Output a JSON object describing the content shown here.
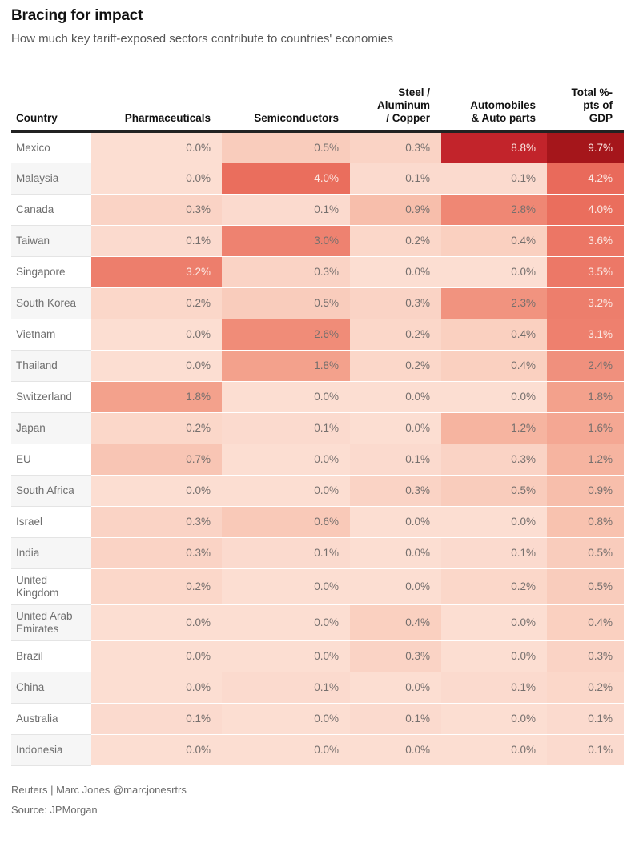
{
  "header": {
    "title": "Bracing for impact",
    "subtitle": "How much key tariff-exposed sectors contribute to countries' economies"
  },
  "table": {
    "columns_display": [
      "Country",
      "Pharmaceuticals",
      "Semiconductors",
      "Steel /\nAluminum\n/ Copper",
      "Automobiles\n& Auto parts",
      "Total %-\npts of\nGDP"
    ]
  },
  "chart_data": {
    "type": "heatmap",
    "title": "Bracing for impact",
    "subtitle": "How much key tariff-exposed sectors contribute to countries' economies",
    "unit": "%",
    "value_format": "one_decimal_percent",
    "columns": [
      "Pharmaceuticals",
      "Semiconductors",
      "Steel / Aluminum / Copper",
      "Automobiles & Auto parts",
      "Total %-pts of GDP"
    ],
    "rows": [
      "Mexico",
      "Malaysia",
      "Canada",
      "Taiwan",
      "Singapore",
      "South Korea",
      "Vietnam",
      "Thailand",
      "Switzerland",
      "Japan",
      "EU",
      "South Africa",
      "Israel",
      "India",
      "United Kingdom",
      "United Arab Emirates",
      "Brazil",
      "China",
      "Australia",
      "Indonesia"
    ],
    "values": [
      [
        0.0,
        0.5,
        0.3,
        8.8,
        9.7
      ],
      [
        0.0,
        4.0,
        0.1,
        0.1,
        4.2
      ],
      [
        0.3,
        0.1,
        0.9,
        2.8,
        4.0
      ],
      [
        0.1,
        3.0,
        0.2,
        0.4,
        3.6
      ],
      [
        3.2,
        0.3,
        0.0,
        0.0,
        3.5
      ],
      [
        0.2,
        0.5,
        0.3,
        2.3,
        3.2
      ],
      [
        0.0,
        2.6,
        0.2,
        0.4,
        3.1
      ],
      [
        0.0,
        1.8,
        0.2,
        0.4,
        2.4
      ],
      [
        1.8,
        0.0,
        0.0,
        0.0,
        1.8
      ],
      [
        0.2,
        0.1,
        0.0,
        1.2,
        1.6
      ],
      [
        0.7,
        0.0,
        0.1,
        0.3,
        1.2
      ],
      [
        0.0,
        0.0,
        0.3,
        0.5,
        0.9
      ],
      [
        0.3,
        0.6,
        0.0,
        0.0,
        0.8
      ],
      [
        0.3,
        0.1,
        0.0,
        0.1,
        0.5
      ],
      [
        0.2,
        0.0,
        0.0,
        0.2,
        0.5
      ],
      [
        0.0,
        0.0,
        0.4,
        0.0,
        0.4
      ],
      [
        0.0,
        0.0,
        0.3,
        0.0,
        0.3
      ],
      [
        0.0,
        0.1,
        0.0,
        0.1,
        0.2
      ],
      [
        0.1,
        0.0,
        0.1,
        0.0,
        0.1
      ],
      [
        0.0,
        0.0,
        0.0,
        0.0,
        0.1
      ]
    ],
    "color_scale_stops": [
      [
        0.0,
        "#fcded2"
      ],
      [
        0.5,
        "#f9ccbc"
      ],
      [
        1.0,
        "#f7bba7"
      ],
      [
        2.0,
        "#f29a85"
      ],
      [
        3.0,
        "#ee8270"
      ],
      [
        4.0,
        "#ea6e5d"
      ],
      [
        6.0,
        "#dc4744"
      ],
      [
        8.8,
        "#c2242b"
      ],
      [
        9.7,
        "#a5161b"
      ]
    ],
    "cell_text_color_light_bg": "#756f6d",
    "cell_text_color_dark_bg": "#fbe9e4",
    "dark_text_threshold": 3.1,
    "legend_position": "none",
    "grid": false
  },
  "footer": {
    "credit": "Reuters | Marc Jones @marcjonesrtrs",
    "source": "Source: JPMorgan"
  }
}
